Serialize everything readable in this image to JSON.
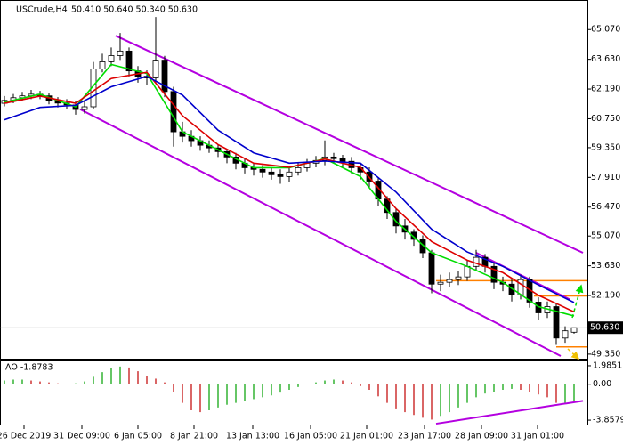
{
  "chart_data": [
    {
      "type": "candlestick",
      "title": "USCrude,H4",
      "subtitle": "50.410 50.640 50.340 50.630",
      "x": [
        0,
        1,
        2,
        3,
        4,
        5,
        6,
        7,
        8,
        9,
        10,
        11,
        12,
        13,
        14,
        15,
        16,
        17,
        18,
        19,
        20,
        21,
        22,
        23,
        24,
        25,
        26,
        27,
        28,
        29,
        30,
        31,
        32,
        33,
        34,
        35,
        36,
        37,
        38,
        39,
        40,
        41,
        42,
        43,
        44,
        45,
        46,
        47,
        48,
        49,
        50,
        51,
        52,
        53,
        54,
        55,
        56,
        57,
        58,
        59,
        60,
        61,
        62,
        63,
        64
      ],
      "open": [
        61.5,
        61.64,
        61.77,
        61.86,
        61.94,
        61.86,
        61.64,
        61.51,
        61.42,
        61.2,
        61.33,
        63.16,
        63.51,
        63.81,
        64.03,
        63.07,
        62.81,
        62.73,
        63.59,
        62.07,
        60.12,
        59.9,
        59.69,
        59.47,
        59.34,
        59.16,
        58.9,
        58.6,
        58.38,
        58.3,
        58.17,
        58.04,
        57.95,
        58.17,
        58.38,
        58.6,
        58.73,
        58.9,
        58.82,
        58.69,
        58.38,
        58.17,
        57.73,
        56.86,
        56.21,
        55.56,
        55.26,
        54.91,
        54.26,
        52.74,
        52.83,
        52.96,
        53.09,
        53.6,
        54.04,
        53.6,
        52.83,
        52.74,
        52.22,
        52.96,
        51.87,
        51.35,
        51.65,
        50.13,
        50.41
      ],
      "high": [
        61.85,
        61.95,
        62.05,
        62.15,
        62.1,
        62.0,
        61.8,
        61.7,
        61.6,
        61.6,
        63.5,
        63.9,
        64.2,
        64.9,
        64.2,
        63.3,
        63.1,
        65.68,
        63.8,
        62.3,
        60.6,
        60.2,
        59.9,
        59.7,
        59.5,
        59.3,
        59.1,
        58.8,
        58.6,
        58.5,
        58.4,
        58.3,
        58.4,
        58.6,
        58.8,
        58.95,
        59.7,
        59.1,
        59.0,
        58.9,
        58.6,
        58.4,
        57.9,
        57.0,
        56.4,
        55.9,
        55.4,
        55.1,
        54.4,
        53.2,
        53.3,
        53.4,
        53.9,
        54.4,
        54.2,
        53.8,
        53.1,
        53.0,
        53.2,
        53.1,
        52.1,
        51.9,
        51.8,
        50.7,
        50.64
      ],
      "low": [
        61.35,
        61.5,
        61.6,
        61.7,
        61.7,
        61.45,
        61.3,
        61.2,
        60.95,
        61.0,
        61.2,
        63.0,
        63.3,
        63.6,
        62.8,
        62.5,
        62.4,
        62.5,
        61.8,
        59.4,
        59.6,
        59.4,
        59.2,
        59.1,
        58.9,
        58.6,
        58.3,
        58.1,
        58.0,
        57.9,
        57.8,
        57.6,
        57.7,
        58.0,
        58.2,
        58.4,
        58.5,
        58.6,
        58.4,
        58.1,
        57.8,
        57.4,
        56.5,
        55.9,
        55.2,
        54.9,
        54.6,
        54.0,
        52.3,
        52.4,
        52.6,
        52.7,
        52.9,
        53.4,
        53.3,
        52.5,
        52.4,
        51.9,
        52.0,
        51.6,
        51.0,
        51.1,
        49.8,
        49.9,
        50.34
      ],
      "close": [
        61.64,
        61.77,
        61.86,
        61.94,
        61.86,
        61.64,
        61.51,
        61.42,
        61.2,
        61.33,
        63.16,
        63.51,
        63.81,
        64.03,
        63.07,
        62.81,
        62.73,
        63.59,
        62.07,
        60.12,
        59.9,
        59.69,
        59.47,
        59.34,
        59.16,
        58.9,
        58.6,
        58.38,
        58.3,
        58.17,
        58.04,
        57.95,
        58.17,
        58.38,
        58.6,
        58.73,
        58.9,
        58.82,
        58.69,
        58.38,
        58.17,
        57.73,
        56.86,
        56.21,
        55.56,
        55.26,
        54.91,
        54.26,
        52.74,
        52.83,
        52.96,
        53.09,
        53.6,
        54.04,
        53.6,
        52.83,
        52.74,
        52.22,
        52.96,
        51.87,
        51.35,
        51.65,
        50.13,
        50.48,
        50.63
      ],
      "up_color": "#ffffff",
      "down_color": "#000000",
      "wick_color": "#000000",
      "lines": [
        {
          "color": "#00dd00",
          "x": [
            0,
            4,
            8,
            12,
            16,
            20,
            24,
            28,
            32,
            36,
            40,
            44,
            48,
            52,
            56,
            60,
            64
          ],
          "values": [
            61.55,
            61.94,
            61.33,
            63.38,
            62.94,
            60.12,
            59.25,
            58.38,
            58.38,
            58.82,
            57.95,
            55.78,
            54.26,
            53.6,
            52.83,
            51.65,
            51.2
          ]
        },
        {
          "color": "#dd0000",
          "x": [
            0,
            4,
            8,
            12,
            16,
            20,
            24,
            28,
            32,
            36,
            40,
            44,
            48,
            52,
            56,
            60,
            64
          ],
          "values": [
            61.5,
            61.85,
            61.5,
            62.7,
            63.0,
            60.9,
            59.5,
            58.6,
            58.4,
            58.8,
            58.4,
            56.4,
            54.8,
            53.9,
            53.3,
            52.2,
            51.4
          ]
        },
        {
          "color": "#0000cc",
          "x": [
            0,
            4,
            8,
            12,
            16,
            20,
            24,
            28,
            32,
            36,
            40,
            44,
            48,
            52,
            56,
            60,
            64
          ],
          "values": [
            60.7,
            61.3,
            61.4,
            62.3,
            62.8,
            61.9,
            60.2,
            59.1,
            58.6,
            58.7,
            58.6,
            57.2,
            55.4,
            54.3,
            53.6,
            52.7,
            51.85
          ]
        }
      ],
      "trendlines": [
        {
          "color": "#b400e0",
          "x": [
            12.5,
            65
          ],
          "y": [
            64.77,
            54.26
          ]
        },
        {
          "color": "#b400e0",
          "x": [
            8.5,
            62.5
          ],
          "y": [
            61.21,
            49.26
          ]
        },
        {
          "color": "#b400e0",
          "x": [
            53,
            63.5
          ],
          "y": [
            54.26,
            52.0
          ]
        }
      ],
      "levels": [
        {
          "color": "#ff8000",
          "value": 52.91,
          "x": [
            48.5,
            65.5
          ]
        },
        {
          "color": "#ff8000",
          "value": 52.17,
          "x": [
            59.5,
            65.5
          ]
        },
        {
          "color": "#ff8000",
          "value": 49.7,
          "x": [
            62,
            65.5
          ]
        }
      ],
      "last_price": {
        "value": 50.63,
        "label": "50.630"
      },
      "xlim": [
        -0.5,
        65.5
      ],
      "ylim": [
        49.13,
        66.46
      ],
      "xticks": [
        {
          "value": 2.2,
          "label": "26 Dec 2019"
        },
        {
          "value": 8.7,
          "label": "31 Dec 09:00"
        },
        {
          "value": 15,
          "label": "6 Jan 05:00"
        },
        {
          "value": 21.3,
          "label": "8 Jan 21:00"
        },
        {
          "value": 27.9,
          "label": "13 Jan 13:00"
        },
        {
          "value": 34.4,
          "label": "16 Jan 05:00"
        },
        {
          "value": 40.7,
          "label": "21 Jan 01:00"
        },
        {
          "value": 47.2,
          "label": "23 Jan 17:00"
        },
        {
          "value": 53.6,
          "label": "28 Jan 09:00"
        },
        {
          "value": 59.9,
          "label": "31 Jan 01:00"
        }
      ],
      "yticks": [
        {
          "value": 65.07,
          "label": "65.070"
        },
        {
          "value": 63.63,
          "label": "63.630"
        },
        {
          "value": 62.19,
          "label": "62.190"
        },
        {
          "value": 60.75,
          "label": "60.750"
        },
        {
          "value": 59.35,
          "label": "59.350"
        },
        {
          "value": 57.91,
          "label": "57.910"
        },
        {
          "value": 56.47,
          "label": "56.470"
        },
        {
          "value": 55.07,
          "label": "55.070"
        },
        {
          "value": 53.63,
          "label": "53.630"
        },
        {
          "value": 52.19,
          "label": "52.190"
        },
        {
          "value": 49.35,
          "label": "49.350"
        }
      ]
    },
    {
      "type": "histogram",
      "title": "AO -1.8783",
      "x": [
        0,
        1,
        2,
        3,
        4,
        5,
        6,
        7,
        8,
        9,
        10,
        11,
        12,
        13,
        14,
        15,
        16,
        17,
        18,
        19,
        20,
        21,
        22,
        23,
        24,
        25,
        26,
        27,
        28,
        29,
        30,
        31,
        32,
        33,
        34,
        35,
        36,
        37,
        38,
        39,
        40,
        41,
        42,
        43,
        44,
        45,
        46,
        47,
        48,
        49,
        50,
        51,
        52,
        53,
        54,
        55,
        56,
        57,
        58,
        59,
        60,
        61,
        62,
        63,
        64
      ],
      "values": [
        0.4,
        0.5,
        0.5,
        0.4,
        0.3,
        0.2,
        0.1,
        0.05,
        0.1,
        0.3,
        0.8,
        1.3,
        1.7,
        1.9,
        1.8,
        1.4,
        0.9,
        0.6,
        0.2,
        -0.8,
        -2.0,
        -2.8,
        -3.0,
        -2.8,
        -2.5,
        -2.2,
        -2.0,
        -1.8,
        -1.6,
        -1.4,
        -1.2,
        -0.9,
        -0.6,
        -0.3,
        0.05,
        0.2,
        0.4,
        0.5,
        0.4,
        0.2,
        -0.2,
        -0.6,
        -1.3,
        -2.0,
        -2.6,
        -3.0,
        -3.3,
        -3.6,
        -3.8,
        -3.4,
        -3.0,
        -2.5,
        -2.0,
        -1.4,
        -1.0,
        -0.8,
        -0.6,
        -0.5,
        -0.6,
        -0.8,
        -1.1,
        -1.4,
        -2.0,
        -2.0,
        -1.8783
      ],
      "up_color": "#00a000",
      "down_color": "#c00000",
      "trendlines": [
        {
          "color": "#b400e0",
          "x": [
            48.5,
            65
          ],
          "y": [
            -4.24,
            -1.78
          ]
        }
      ],
      "xlim": [
        -0.5,
        65.5
      ],
      "ylim": [
        -4.33,
        2.46
      ],
      "yticks": [
        1.9851,
        {
          "value": 0,
          "label": "0.00"
        },
        -3.8579
      ]
    }
  ]
}
